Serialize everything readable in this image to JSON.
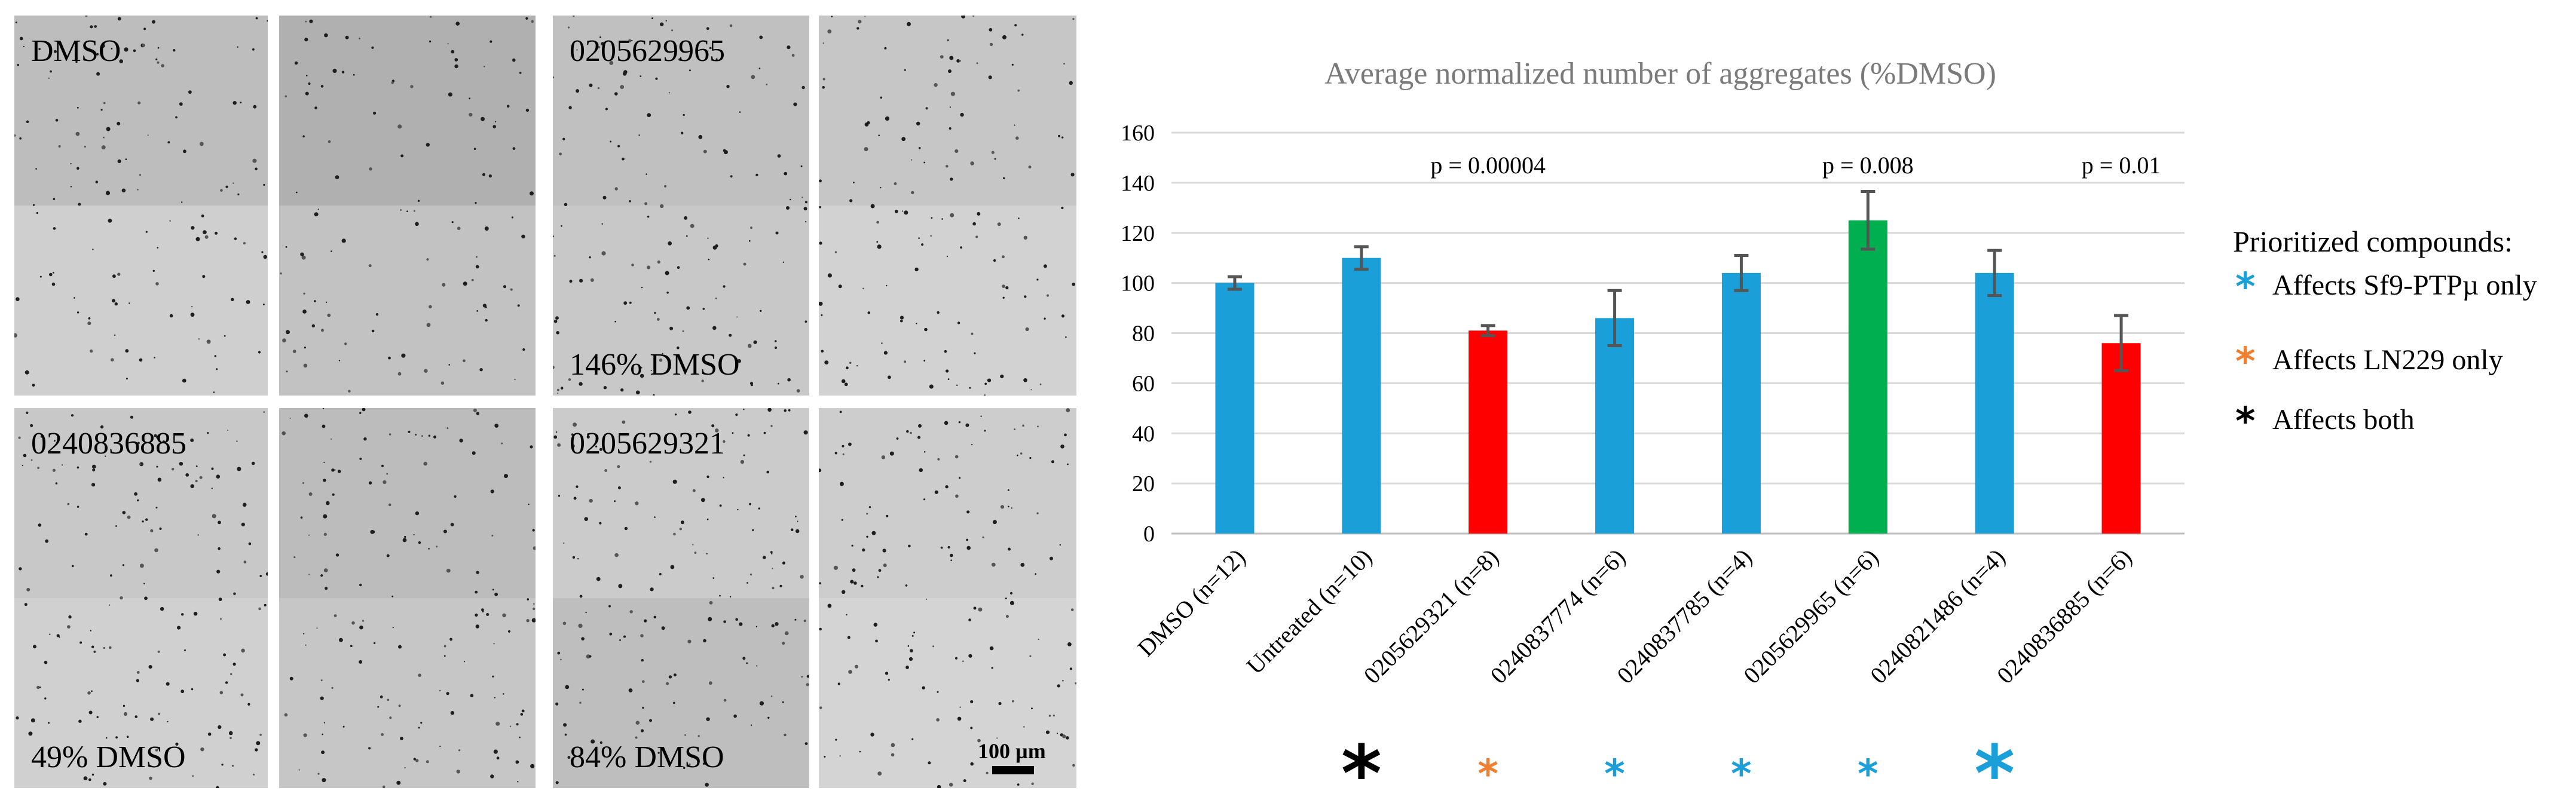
{
  "panels": [
    {
      "label": "DMSO",
      "label_position": "top",
      "tone": "#bdbdbd",
      "tone_lower": "#cfcfcf"
    },
    {
      "label": "",
      "label_position": "none",
      "tone": "#b0b0b0",
      "tone_lower": "#c2c2c2"
    },
    {
      "label": "0205629965",
      "label_position": "top",
      "tone": "#c0c0c0",
      "tone_lower": "#c8c8c8"
    },
    {
      "label": "",
      "label_position": "none",
      "tone": "#c6c6c6",
      "tone_lower": "#d2d2d2"
    },
    {
      "label": "0240836885",
      "label_position": "top",
      "tone": "#c8c8c8",
      "tone_lower": "#d0d0d0"
    },
    {
      "label": "",
      "label_position": "none",
      "tone": "#bcbcbc",
      "tone_lower": "#c6c6c6"
    },
    {
      "label": "0205629321",
      "label_position": "top",
      "tone": "#cbcbcb",
      "tone_lower": "#bebebe"
    },
    {
      "label": "",
      "label_position": "none",
      "tone": "#cdcdcd",
      "tone_lower": "#d4d4d4"
    }
  ],
  "panel_notes": {
    "p2": "146% DMSO",
    "p4": "49% DMSO",
    "p6": "84% DMSO"
  },
  "scale_bar_label": "100 µm",
  "chart_data": {
    "type": "bar",
    "title": "Average normalized number of aggregates (%DMSO)",
    "xlabel": "",
    "ylabel": "",
    "ylim": [
      0,
      160
    ],
    "yticks": [
      0,
      20,
      40,
      60,
      80,
      100,
      120,
      140,
      160
    ],
    "grid": true,
    "categories": [
      "DMSO (n=12)",
      "Untreated (n=10)",
      "0205629321 (n=8)",
      "0240837774 (n=6)",
      "0240837785 (n=4)",
      "0205629965 (n=6)",
      "0240821486 (n=4)",
      "0240836885 (n=6)"
    ],
    "values": [
      100,
      110,
      81,
      86,
      104,
      125,
      104,
      76
    ],
    "errors": [
      2.5,
      4.5,
      2,
      11,
      7,
      11.5,
      9,
      11
    ],
    "colors": [
      "#1a9fd9",
      "#1a9fd9",
      "#ff0000",
      "#1a9fd9",
      "#1a9fd9",
      "#00b050",
      "#1a9fd9",
      "#ff0000"
    ],
    "pvalues": [
      {
        "category_index": 2,
        "text": "p = 0.00004"
      },
      {
        "category_index": 5,
        "text": "p = 0.008"
      },
      {
        "category_index": 7,
        "text": "p = 0.01"
      }
    ],
    "markers": [
      {
        "category_index": 1,
        "symbol": "*",
        "color": "#000000",
        "size": "large"
      },
      {
        "category_index": 2,
        "symbol": "*",
        "color": "#f08030",
        "size": "small"
      },
      {
        "category_index": 3,
        "symbol": "*",
        "color": "#1a9fd9",
        "size": "small"
      },
      {
        "category_index": 4,
        "symbol": "*",
        "color": "#1a9fd9",
        "size": "small"
      },
      {
        "category_index": 5,
        "symbol": "*",
        "color": "#1a9fd9",
        "size": "small"
      },
      {
        "category_index": 6,
        "symbol": "*",
        "color": "#1a9fd9",
        "size": "large"
      }
    ]
  },
  "legend": {
    "title": "Prioritized compounds:",
    "items": [
      {
        "symbol": "*",
        "color": "#1a9fd9",
        "label": "Affects Sf9-PTPµ only"
      },
      {
        "symbol": "*",
        "color": "#f08030",
        "label": "Affects LN229 only"
      },
      {
        "symbol": "*",
        "color": "#000000",
        "label": "Affects both"
      }
    ]
  }
}
